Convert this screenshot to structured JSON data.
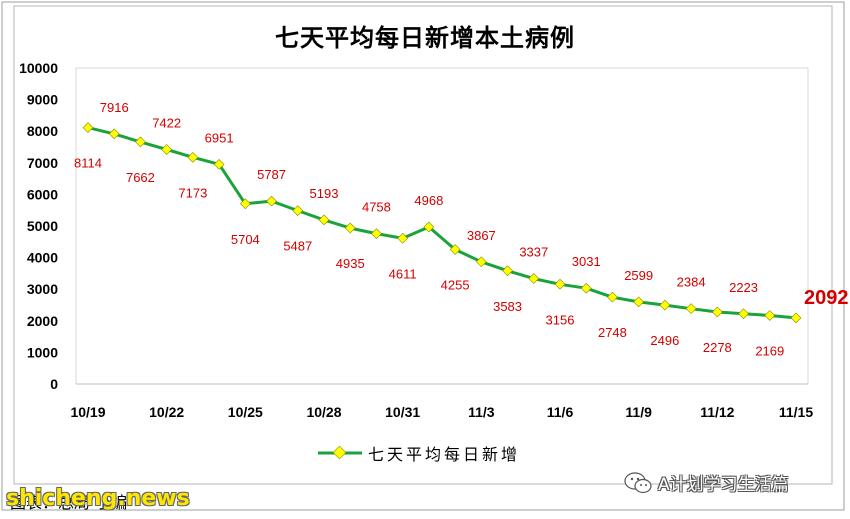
{
  "chart_data": {
    "type": "line",
    "title": "七天平均每日新增本土病例",
    "x": [
      "10/19",
      "10/20",
      "10/21",
      "10/22",
      "10/23",
      "10/24",
      "10/25",
      "10/26",
      "10/27",
      "10/28",
      "10/29",
      "10/30",
      "10/31",
      "11/1",
      "11/2",
      "11/3",
      "11/4",
      "11/5",
      "11/6",
      "11/7",
      "11/8",
      "11/9",
      "11/10",
      "11/11",
      "11/12",
      "11/13",
      "11/14",
      "11/15"
    ],
    "x_tick_labels": [
      "10/19",
      "10/22",
      "10/25",
      "10/28",
      "10/31",
      "11/3",
      "11/6",
      "11/9",
      "11/12",
      "11/15"
    ],
    "series": [
      {
        "name": "七天平均每日新增",
        "values": [
          8114,
          7916,
          7662,
          7422,
          7173,
          6951,
          5704,
          5787,
          5487,
          5193,
          4935,
          4758,
          4611,
          4968,
          4255,
          3867,
          3583,
          3337,
          3156,
          3031,
          2748,
          2599,
          2496,
          2384,
          2278,
          2223,
          2169,
          2092
        ],
        "color": "#1aa33b",
        "marker_color": "#ffff00"
      }
    ],
    "data_labels": [
      {
        "i": 0,
        "text": "8114",
        "pos": "below"
      },
      {
        "i": 1,
        "text": "7916",
        "pos": "above"
      },
      {
        "i": 2,
        "text": "7662",
        "pos": "below"
      },
      {
        "i": 3,
        "text": "7422",
        "pos": "above"
      },
      {
        "i": 4,
        "text": "7173",
        "pos": "below"
      },
      {
        "i": 5,
        "text": "6951",
        "pos": "above"
      },
      {
        "i": 6,
        "text": "5704",
        "pos": "below"
      },
      {
        "i": 7,
        "text": "5787",
        "pos": "above"
      },
      {
        "i": 8,
        "text": "5487",
        "pos": "below"
      },
      {
        "i": 9,
        "text": "5193",
        "pos": "above"
      },
      {
        "i": 10,
        "text": "4935",
        "pos": "below"
      },
      {
        "i": 11,
        "text": "4758",
        "pos": "above"
      },
      {
        "i": 12,
        "text": "4611",
        "pos": "below"
      },
      {
        "i": 13,
        "text": "4968",
        "pos": "above"
      },
      {
        "i": 14,
        "text": "4255",
        "pos": "below"
      },
      {
        "i": 15,
        "text": "3867",
        "pos": "above"
      },
      {
        "i": 16,
        "text": "3583",
        "pos": "below"
      },
      {
        "i": 17,
        "text": "3337",
        "pos": "above"
      },
      {
        "i": 18,
        "text": "3156",
        "pos": "below"
      },
      {
        "i": 19,
        "text": "3031",
        "pos": "above"
      },
      {
        "i": 20,
        "text": "2748",
        "pos": "below"
      },
      {
        "i": 21,
        "text": "2599",
        "pos": "above"
      },
      {
        "i": 22,
        "text": "2496",
        "pos": "below"
      },
      {
        "i": 23,
        "text": "2384",
        "pos": "above"
      },
      {
        "i": 24,
        "text": "2278",
        "pos": "below"
      },
      {
        "i": 25,
        "text": "2223",
        "pos": "above"
      },
      {
        "i": 26,
        "text": "2169",
        "pos": "below"
      },
      {
        "i": 27,
        "text": "2092",
        "pos": "right",
        "emphasis": true
      }
    ],
    "ylim": [
      0,
      10000
    ],
    "yticks": [
      0,
      1000,
      2000,
      3000,
      4000,
      5000,
      6000,
      7000,
      8000,
      9000,
      10000
    ],
    "grid": false,
    "legend_position": "bottom",
    "label_color": "#d40000"
  },
  "legend_label": "七天平均每日新增",
  "source_text": "图表：总局 小编",
  "watermark_left": "shicheng.news",
  "watermark_right": "A计划学习生活篇"
}
